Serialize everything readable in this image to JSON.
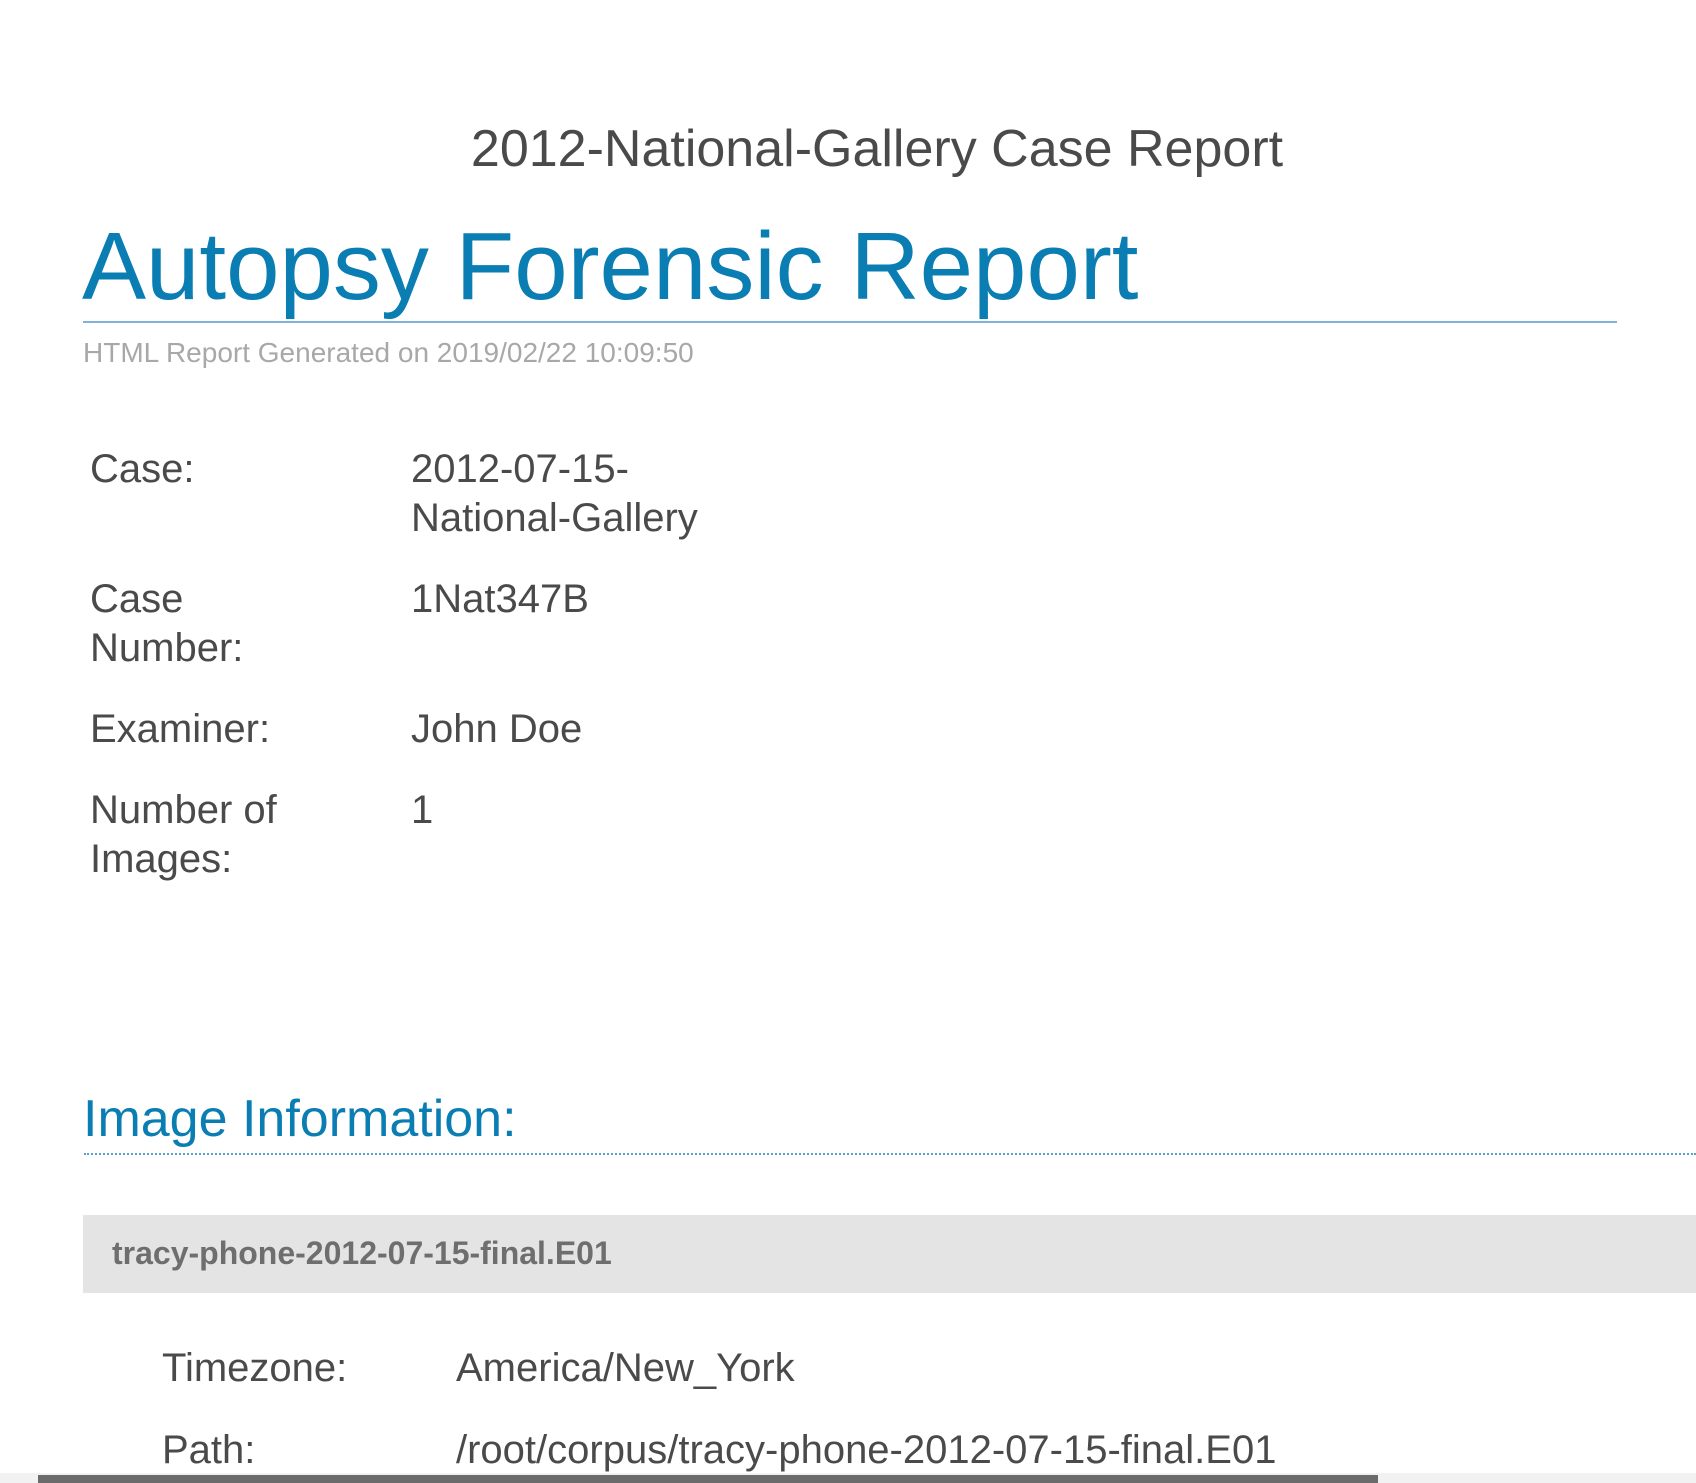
{
  "case_title": "2012-National-Gallery Case Report",
  "report_title": "Autopsy Forensic Report",
  "generated_text": "HTML Report Generated on 2019/02/22 10:09:50",
  "case_info": [
    {
      "label": "Case:",
      "value": "2012-07-15-National-Gallery"
    },
    {
      "label": "Case Number:",
      "value": "1Nat347B"
    },
    {
      "label": "Examiner:",
      "value": "John Doe"
    },
    {
      "label": "Number of Images:",
      "value": "1"
    }
  ],
  "image_section": {
    "heading": "Image Information:",
    "image_name": "tracy-phone-2012-07-15-final.E01",
    "details": [
      {
        "label": "Timezone:",
        "value": "America/New_York"
      },
      {
        "label": "Path:",
        "value": "/root/corpus/tracy-phone-2012-07-15-final.E01"
      }
    ]
  }
}
